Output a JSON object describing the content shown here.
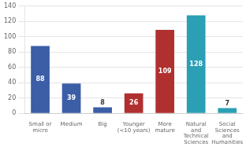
{
  "chart_data": {
    "type": "bar",
    "categories": [
      "Small or\nmicro",
      "Medium",
      "Big",
      "Younger\n(<10 years)",
      "More\nmature",
      "Natural\nand\nTechnical\nSciences",
      "Social\nSciences\nand\nHumanities"
    ],
    "values": [
      88,
      39,
      8,
      26,
      109,
      128,
      7
    ],
    "colors": [
      "#3B5EA6",
      "#3B5EA6",
      "#3B5EA6",
      "#B03030",
      "#B03030",
      "#2BA0B4",
      "#2BA0B4"
    ],
    "ylim": [
      0,
      140
    ],
    "yticks": [
      0,
      20,
      40,
      60,
      80,
      100,
      120,
      140
    ],
    "grid": true,
    "data_labels": true
  }
}
